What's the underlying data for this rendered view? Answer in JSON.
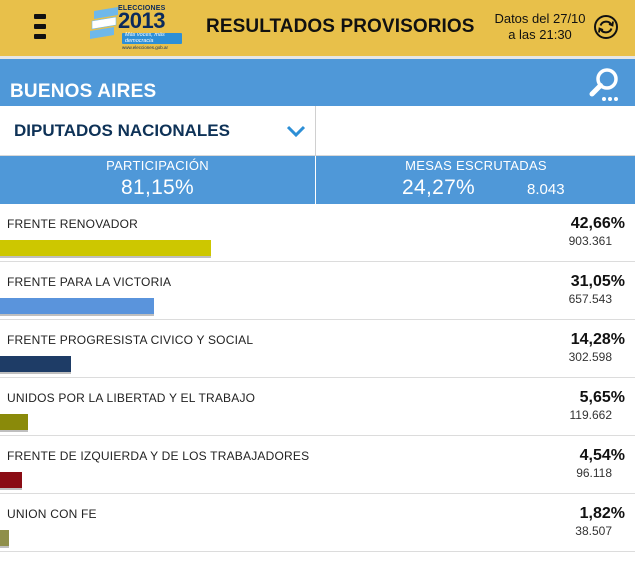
{
  "header": {
    "logo_small": "ELECCIONES",
    "logo_year": "2013",
    "logo_tagline": "Más voces, más democracia",
    "logo_url": "www.elecciones.gob.ar",
    "title": "RESULTADOS PROVISORIOS",
    "date_line1": "Datos del 27/10",
    "date_line2": "a las 21:30",
    "menu_icon": "hamburger-menu-icon",
    "refresh_icon": "refresh-icon"
  },
  "region": {
    "name": "BUENOS AIRES",
    "search_icon": "search-icon"
  },
  "selector": {
    "label": "DIPUTADOS NACIONALES",
    "chevron_icon": "chevron-down-icon"
  },
  "stats": {
    "participation_label": "PARTICIPACIÓN",
    "participation_value": "81,15%",
    "tables_label": "MESAS ESCRUTADAS",
    "tables_value": "24,27%",
    "tables_count": "8.043"
  },
  "results": [
    {
      "party": "FRENTE RENOVADOR",
      "percent": "42,66%",
      "votes": "903.361",
      "share": 42.66,
      "color": "#cdc700"
    },
    {
      "party": "FRENTE PARA LA VICTORIA",
      "percent": "31,05%",
      "votes": "657.543",
      "share": 31.05,
      "color": "#5a94dc"
    },
    {
      "party": "FRENTE PROGRESISTA CIVICO Y SOCIAL",
      "percent": "14,28%",
      "votes": "302.598",
      "share": 14.28,
      "color": "#1e3c66"
    },
    {
      "party": "UNIDOS POR LA LIBERTAD Y EL TRABAJO",
      "percent": "5,65%",
      "votes": "119.662",
      "share": 5.65,
      "color": "#8a8a0a"
    },
    {
      "party": "FRENTE DE IZQUIERDA Y DE LOS TRABAJADORES",
      "percent": "4,54%",
      "votes": "96.118",
      "share": 4.54,
      "color": "#8a0c14"
    },
    {
      "party": "UNION CON FE",
      "percent": "1,82%",
      "votes": "38.507",
      "share": 1.82,
      "color": "#8f8f4a"
    }
  ]
}
